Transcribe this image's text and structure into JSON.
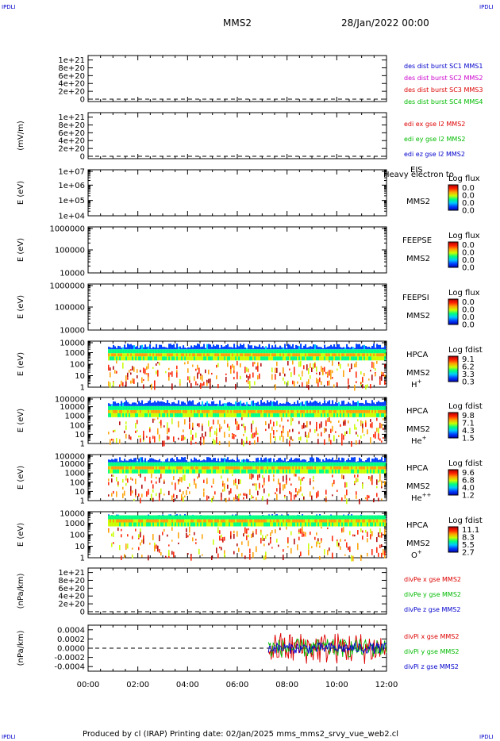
{
  "corners": {
    "tl": "IPDLI",
    "tr": "IPDLI",
    "bl": "IPDLI",
    "br": "IPDLI"
  },
  "header": {
    "spacecraft": "MMS2",
    "datetime": "28/Jan/2022 00:00"
  },
  "footer": {
    "text": "Produced by cl (IRAP)   Printing date: 02/Jan/2025   mms_mms2_srvy_vue_web2.cl"
  },
  "colors": {
    "spectrogram_colormap": [
      "#0000b0",
      "#0040ff",
      "#00c8ff",
      "#00ff80",
      "#c8ff00",
      "#ffa000",
      "#ff2000",
      "#b00000"
    ],
    "grid": "#000000"
  },
  "chart_data": [
    {
      "type": "line",
      "ylabel": "",
      "yticks": [
        "0",
        "2e+20",
        "4e+20",
        "6e+20",
        "8e+20",
        "1e+21"
      ],
      "series": [
        {
          "name": "des dist burst SC1 MMS1",
          "color": "#0000cc"
        },
        {
          "name": "des dist burst SC2 MMS2",
          "color": "#cc00cc"
        },
        {
          "name": "des dist burst SC3 MMS3",
          "color": "#dd0000"
        },
        {
          "name": "des dist burst SC4 MMS4",
          "color": "#00bb00"
        }
      ],
      "zero_line": "dashed"
    },
    {
      "type": "line",
      "ylabel": "(mV/m)",
      "yticks": [
        "0",
        "2e+20",
        "4e+20",
        "6e+20",
        "8e+20",
        "1e+21"
      ],
      "series": [
        {
          "name": "edi ex gse l2 MMS2",
          "color": "#dd0000"
        },
        {
          "name": "edi ey gse l2 MMS2",
          "color": "#00bb00"
        },
        {
          "name": "edi ez gse l2 MMS2",
          "color": "#0000cc"
        }
      ],
      "zero_line": "dashed"
    },
    {
      "type": "heatmap",
      "ylabel": "E (eV)",
      "yticks": [
        "1e+04",
        "1e+05",
        "1e+06",
        "1e+07"
      ],
      "instrument": "EIS",
      "species": "Heavy electron to",
      "sc": "MMS2",
      "cbar_title": "Log flux",
      "cbar_ticks": [
        "0.0",
        "0.0",
        "0.0",
        "0.0"
      ],
      "coverage": "none"
    },
    {
      "type": "heatmap",
      "ylabel": "E (eV)",
      "yticks": [
        "10000",
        "100000",
        "1000000"
      ],
      "instrument": "FEEPSE",
      "sc": "MMS2",
      "cbar_title": "Log flux",
      "cbar_ticks": [
        "0.0",
        "0.0",
        "0.0",
        "0.0"
      ],
      "coverage": "none"
    },
    {
      "type": "heatmap",
      "ylabel": "E (eV)",
      "yticks": [
        "10000",
        "100000",
        "1000000"
      ],
      "instrument": "FEEPSI",
      "sc": "MMS2",
      "cbar_title": "Log flux",
      "cbar_ticks": [
        "0.0",
        "0.0",
        "0.0",
        "0.0"
      ],
      "coverage": "none"
    },
    {
      "type": "heatmap",
      "ylabel": "E (eV)",
      "yticks": [
        "1",
        "10",
        "100",
        "1000",
        "10000"
      ],
      "instrument": "HPCA",
      "sc": "MMS2",
      "species": "H",
      "species_sup": "+",
      "cbar_title": "Log fdist",
      "cbar_ticks": [
        "9.1",
        "6.2",
        "3.3",
        "0.3"
      ],
      "data_start_hour": 0.8,
      "band_center_decade": 2.6,
      "profile": "H"
    },
    {
      "type": "heatmap",
      "ylabel": "E (eV)",
      "yticks": [
        "1",
        "10",
        "100",
        "1000",
        "10000",
        "100000"
      ],
      "instrument": "HPCA",
      "sc": "MMS2",
      "species": "He",
      "species_sup": "+",
      "cbar_title": "Log fdist",
      "cbar_ticks": [
        "9.8",
        "7.1",
        "4.3",
        "1.5"
      ],
      "data_start_hour": 0.8,
      "band_center_decade": 3.2,
      "profile": "He1"
    },
    {
      "type": "heatmap",
      "ylabel": "E (eV)",
      "yticks": [
        "1",
        "10",
        "100",
        "1000",
        "10000",
        "100000"
      ],
      "instrument": "HPCA",
      "sc": "MMS2",
      "species": "He",
      "species_sup": "++",
      "cbar_title": "Log fdist",
      "cbar_ticks": [
        "9.6",
        "6.8",
        "4.0",
        "1.2"
      ],
      "data_start_hour": 0.8,
      "band_center_decade": 3.3,
      "profile": "He2"
    },
    {
      "type": "heatmap",
      "ylabel": "E (eV)",
      "yticks": [
        "1",
        "10",
        "100",
        "1000",
        "10000"
      ],
      "instrument": "HPCA",
      "sc": "MMS2",
      "species": "O",
      "species_sup": "+",
      "cbar_title": "Log fdist",
      "cbar_ticks": [
        "11.1",
        "8.3",
        "5.5",
        "2.7"
      ],
      "data_start_hour": 0.8,
      "band_center_decade": 3.0,
      "profile": "O"
    },
    {
      "type": "line",
      "ylabel": "(nPa/km)",
      "yticks": [
        "0",
        "2e+20",
        "4e+20",
        "6e+20",
        "8e+20",
        "1e+21"
      ],
      "series": [
        {
          "name": "divPe x gse MMS2",
          "color": "#dd0000"
        },
        {
          "name": "divPe y gse MMS2",
          "color": "#00bb00"
        },
        {
          "name": "divPe z gse MMS2",
          "color": "#0000cc"
        }
      ],
      "zero_line": "dashed"
    },
    {
      "type": "line",
      "ylabel": "(nPa/km)",
      "yticks": [
        "-0.0004",
        "-0.0002",
        "0.0000",
        "0.0002",
        "0.0004"
      ],
      "ylim": [
        -0.0005,
        0.0005
      ],
      "series": [
        {
          "name": "divPi x gse MMS2",
          "color": "#dd0000",
          "amplitude": 0.00035
        },
        {
          "name": "divPi y gse MMS2",
          "color": "#00bb00",
          "amplitude": 0.0002
        },
        {
          "name": "divPi z gse MMS2",
          "color": "#0000cc",
          "amplitude": 0.00012
        }
      ],
      "data_start_hour": 7.25,
      "zero_line": "dashed"
    }
  ],
  "xaxis": {
    "ticks": [
      "00:00",
      "02:00",
      "04:00",
      "06:00",
      "08:00",
      "10:00",
      "12:00"
    ],
    "range_hours": [
      0,
      12
    ]
  }
}
